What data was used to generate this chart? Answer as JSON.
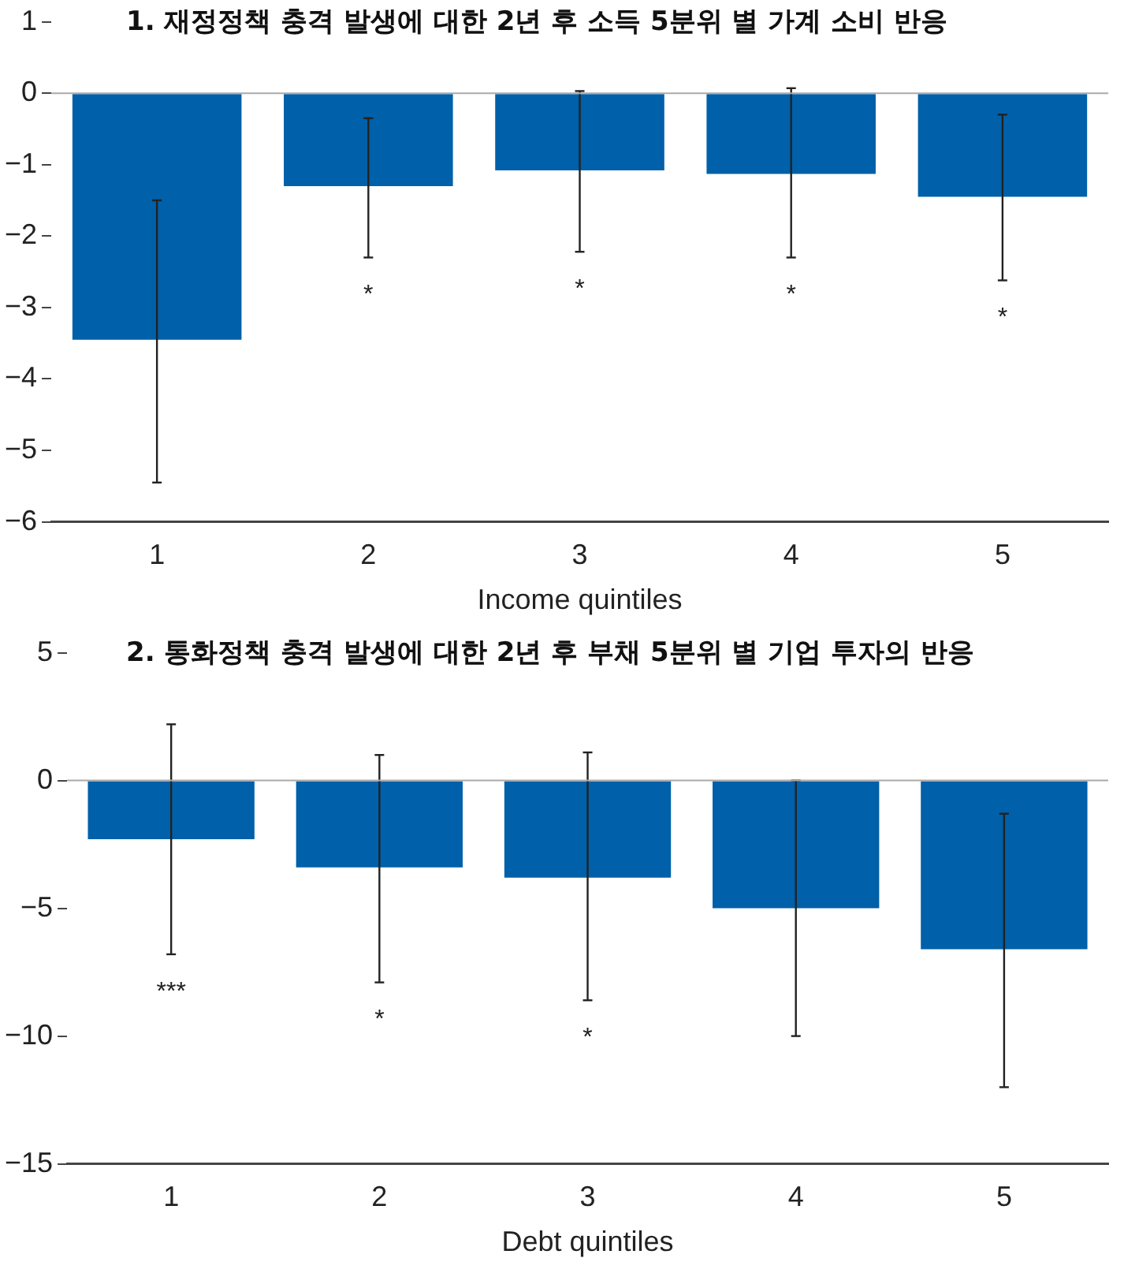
{
  "chart_data": [
    {
      "type": "bar",
      "title": "1.      재정정책 충격 발생에 대한 2년 후 소득 5분위 별 가계 소비 반응",
      "xlabel": "Income quintiles",
      "categories": [
        "1",
        "2",
        "3",
        "4",
        "5"
      ],
      "series": [
        {
          "color": "#0060a9",
          "values": [
            -3.45,
            -1.3,
            -1.08,
            -1.13,
            -1.45
          ],
          "errors": [
            [
              -5.45,
              -1.5
            ],
            [
              -2.3,
              -0.35
            ],
            [
              -2.22,
              0.03
            ],
            [
              -2.3,
              0.07
            ],
            [
              -2.62,
              -0.3
            ]
          ]
        }
      ],
      "value_labels": [
        null,
        "*",
        "*",
        "*",
        "*"
      ],
      "ylim": [
        -6,
        1
      ],
      "yticks": [
        -6,
        -5,
        -4,
        -3,
        -2,
        -1,
        0,
        1
      ],
      "legend": false,
      "ref_lines": [
        {
          "axis": "y",
          "value": 0,
          "color": "#aaaaaa"
        }
      ]
    },
    {
      "type": "bar",
      "title": "2. 통화정책 충격 발생에 대한 2년 후 부채 5분위 별 기업 투자의 반응",
      "xlabel": "Debt quintiles",
      "categories": [
        "1",
        "2",
        "3",
        "4",
        "5"
      ],
      "series": [
        {
          "color": "#0060a9",
          "values": [
            -2.3,
            -3.4,
            -3.8,
            -5.0,
            -6.6
          ],
          "errors": [
            [
              -6.8,
              2.2
            ],
            [
              -7.9,
              1.0
            ],
            [
              -8.6,
              1.1
            ],
            [
              -10.0,
              0.0
            ],
            [
              -12.0,
              -1.3
            ]
          ]
        }
      ],
      "value_labels": [
        "***",
        "*",
        "*",
        null,
        null
      ],
      "ylim": [
        -15,
        5
      ],
      "yticks": [
        -15,
        -10,
        -5,
        0,
        5
      ],
      "legend": false,
      "ref_lines": [
        {
          "axis": "y",
          "value": 0,
          "color": "#aaaaaa"
        }
      ]
    }
  ]
}
